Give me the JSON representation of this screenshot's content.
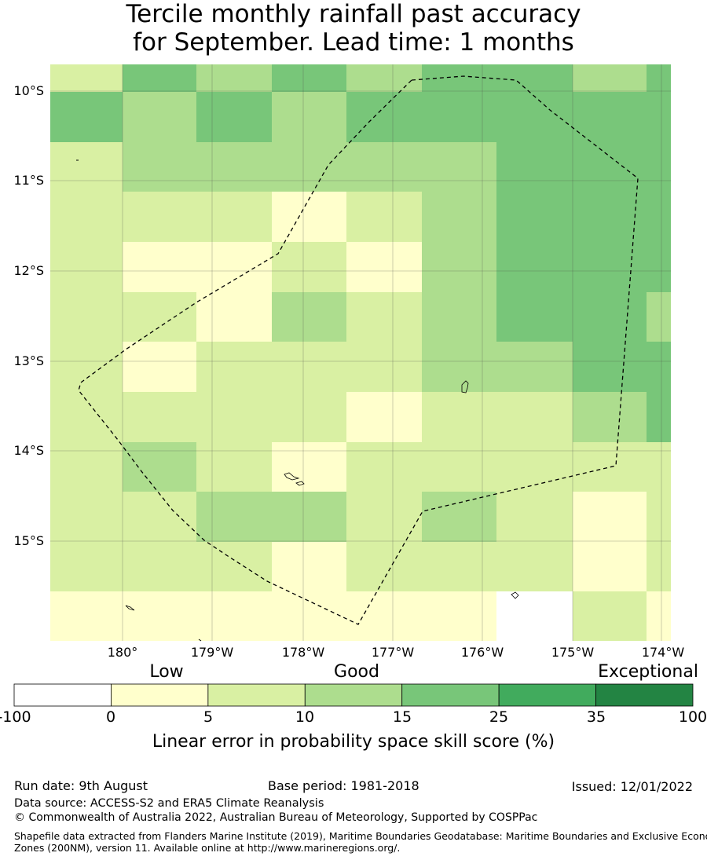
{
  "title_line1": "Tercile monthly rainfall past accuracy",
  "title_line2": "for September. Lead time: 1 months",
  "map": {
    "lat_labels": [
      "10°S",
      "11°S",
      "12°S",
      "13°S",
      "14°S",
      "15°S"
    ],
    "lon_labels": [
      "180°",
      "179°W",
      "178°W",
      "177°W",
      "176°W",
      "175°W",
      "174°W"
    ],
    "grid_cols": 9,
    "grid_rows": 12,
    "skill_category_grid": [
      [
        2,
        4,
        3,
        4,
        3,
        4,
        4,
        3,
        4
      ],
      [
        4,
        3,
        4,
        3,
        4,
        4,
        4,
        4,
        4
      ],
      [
        2,
        3,
        3,
        3,
        3,
        3,
        4,
        4,
        4
      ],
      [
        2,
        2,
        2,
        1,
        2,
        3,
        4,
        4,
        4
      ],
      [
        2,
        1,
        1,
        2,
        1,
        3,
        4,
        4,
        4
      ],
      [
        2,
        2,
        1,
        3,
        2,
        3,
        4,
        4,
        3
      ],
      [
        2,
        1,
        2,
        2,
        2,
        3,
        3,
        4,
        4
      ],
      [
        2,
        2,
        2,
        2,
        1,
        2,
        2,
        3,
        4
      ],
      [
        2,
        3,
        2,
        1,
        2,
        2,
        2,
        2,
        2
      ],
      [
        2,
        2,
        3,
        3,
        2,
        3,
        2,
        1,
        2
      ],
      [
        2,
        2,
        2,
        1,
        2,
        2,
        2,
        1,
        2
      ],
      [
        1,
        1,
        1,
        1,
        1,
        1,
        0,
        2,
        1
      ]
    ],
    "outline": "dashed maritime boundary"
  },
  "categories": [
    "Low",
    "Good",
    "Exceptional"
  ],
  "colorbar": {
    "ticks": [
      "-100",
      "0",
      "5",
      "10",
      "15",
      "25",
      "35",
      "100"
    ],
    "colors": [
      "#ffffff",
      "#ffffcc",
      "#d9f0a3",
      "#addd8e",
      "#78c679",
      "#41ab5d",
      "#238443"
    ],
    "label": "Linear error in probability space skill score (%)"
  },
  "footer": {
    "run_date": "Run date: 9th August",
    "base_period": "Base period: 1981-2018",
    "issued": "Issued: 12/01/2022",
    "data_source": "Data source: ACCESS-S2 and ERA5 Climate Reanalysis",
    "copyright": "© Commonwealth of Australia 2022, Australian Bureau of Meteorology, Supported by COSPPac",
    "shapefile_1": "Shapefile data extracted from Flanders Marine Institute (2019), Maritime Boundaries Geodatabase: Maritime Boundaries and Exclusive Economic",
    "shapefile_2": "Zones (200NM), version 11. Available online at http://www.marineregions.org/."
  }
}
